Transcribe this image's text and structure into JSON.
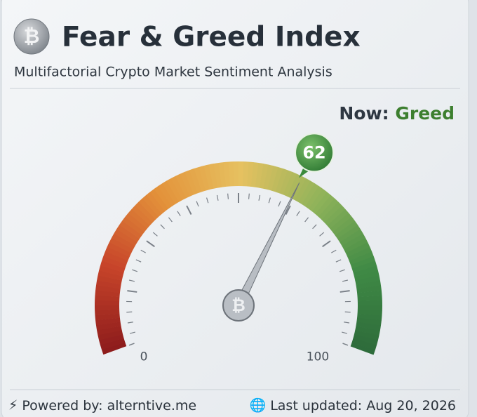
{
  "header": {
    "title": "Fear & Greed Index",
    "subtitle": "Multifactorial Crypto Market Sentiment Analysis"
  },
  "status": {
    "label": "Now:",
    "classification": "Greed"
  },
  "chart_data": {
    "type": "gauge",
    "value": 62,
    "range": [
      0,
      100
    ],
    "ticks": [
      0,
      100
    ],
    "colors": [
      "#8e1c1c",
      "#c8452a",
      "#e3923a",
      "#e6c160",
      "#8fb35a",
      "#3f8a45",
      "#2d6a3a"
    ]
  },
  "footer": {
    "powered_by": "Powered by: alterntive.me",
    "last_updated": "Last updated: Aug 20, 2026"
  }
}
